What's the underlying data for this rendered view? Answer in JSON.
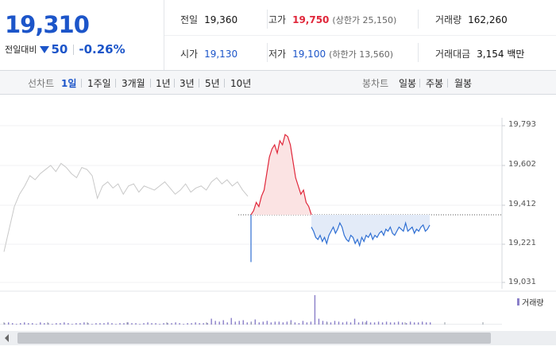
{
  "summary": {
    "price": "19,310",
    "change_label": "전일대비",
    "change_value": "50",
    "change_pct": "-0.26%",
    "direction": "down",
    "down_color": "#1c55c9",
    "up_color": "#e0263a"
  },
  "stats": {
    "prev_label": "전일",
    "prev_value": "19,360",
    "high_label": "고가",
    "high_value": "19,750",
    "high_sub": "(상한가 25,150)",
    "volume_label": "거래량",
    "volume_value": "162,260",
    "open_label": "시가",
    "open_value": "19,130",
    "low_label": "저가",
    "low_value": "19,100",
    "low_sub": "(하한가 13,560)",
    "amount_label": "거래대금",
    "amount_value": "3,154 백만"
  },
  "tabs": {
    "line_label": "선차트",
    "line_items": [
      "1일",
      "1주일",
      "3개월",
      "1년",
      "3년",
      "5년",
      "10년"
    ],
    "line_active": 0,
    "candle_label": "봉차트",
    "candle_items": [
      "일봉",
      "주봉",
      "월봉"
    ]
  },
  "chart_data": {
    "type": "line",
    "title": "",
    "y_ticks": [
      "19,793",
      "19,602",
      "19,412",
      "19,221",
      "19,031"
    ],
    "ylim": [
      19031,
      19793
    ],
    "reference_price": 19360,
    "series": [
      {
        "role": "previous-day",
        "color": "#c8c8c8",
        "y": [
          19180,
          19290,
          19400,
          19460,
          19500,
          19550,
          19530,
          19560,
          19580,
          19600,
          19570,
          19610,
          19590,
          19560,
          19540,
          19590,
          19580,
          19550,
          19440,
          19500,
          19520,
          19490,
          19510,
          19460,
          19500,
          19510,
          19470,
          19500,
          19490,
          19480,
          19500,
          19520,
          19490,
          19460,
          19480,
          19510,
          19470,
          19490,
          19500,
          19480,
          19520,
          19540,
          19510,
          19530,
          19500,
          19520,
          19480,
          19450
        ]
      },
      {
        "role": "today-above",
        "color": "#e0263a",
        "fill": "#fbe3e3",
        "y": [
          19360,
          19380,
          19420,
          19400,
          19450,
          19480,
          19560,
          19640,
          19680,
          19700,
          19660,
          19720,
          19700,
          19750,
          19740,
          19700,
          19620,
          19540,
          19500,
          19460,
          19480,
          19420,
          19400,
          19360
        ]
      },
      {
        "role": "today-below",
        "color": "#2f6fd3",
        "fill": "#e3ebf8",
        "y": [
          19130,
          19360,
          19300,
          19280,
          19250,
          19240,
          19260,
          19230,
          19250,
          19220,
          19260,
          19280,
          19300,
          19270,
          19290,
          19320,
          19300,
          19260,
          19240,
          19230,
          19260,
          19250,
          19220,
          19240,
          19210,
          19250,
          19230,
          19260,
          19250,
          19270,
          19240,
          19260,
          19250,
          19270,
          19280,
          19260,
          19290,
          19280,
          19300,
          19270,
          19260,
          19280,
          19300,
          19290,
          19280,
          19320,
          19280,
          19290,
          19300,
          19270,
          19290,
          19280,
          19300,
          19310,
          19280,
          19290,
          19310
        ]
      }
    ],
    "volume": {
      "label": "거래량",
      "color": "#8a7fc9",
      "values": [
        2,
        3,
        2,
        1,
        2,
        3,
        2,
        2,
        1,
        3,
        2,
        2,
        1,
        2,
        2,
        3,
        2,
        1,
        2,
        2,
        3,
        2,
        1,
        2,
        2,
        2,
        3,
        2,
        1,
        2,
        2,
        3,
        2,
        2,
        1,
        2,
        3,
        2,
        2,
        1,
        2,
        2,
        2,
        3,
        2,
        1,
        2,
        2,
        3,
        2,
        2,
        2,
        8,
        5,
        4,
        6,
        3,
        9,
        4,
        5,
        6,
        3,
        4,
        7,
        3,
        4,
        5,
        3,
        4,
        4,
        3,
        4,
        6,
        3,
        2,
        5,
        3,
        4,
        40,
        8,
        5,
        4,
        3,
        5,
        4,
        3,
        4,
        3,
        8,
        3,
        4,
        5,
        3,
        3,
        4,
        3,
        4,
        3,
        3,
        4,
        3,
        2,
        4,
        3,
        3,
        4,
        3,
        3
      ]
    }
  }
}
